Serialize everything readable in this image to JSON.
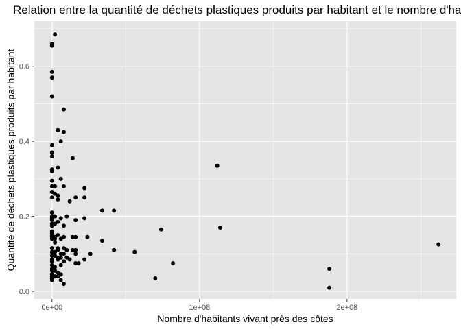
{
  "chart_data": {
    "type": "scatter",
    "title": "Relation entre la quantité de déchets plastiques produits par habitant et le nombre d'habitants vivant près des côtes",
    "xlabel": "Nombre d'habitants vivant près des côtes",
    "ylabel": "Quantité de déchets plastiques produits par habitant",
    "xlim": [
      -12000000,
      274000000
    ],
    "ylim": [
      -0.02,
      0.72
    ],
    "x_ticks": [
      0,
      100000000,
      200000000
    ],
    "x_tick_labels": [
      "0e+00",
      "1e+08",
      "2e+08"
    ],
    "y_ticks": [
      0.0,
      0.2,
      0.4,
      0.6
    ],
    "y_tick_labels": [
      "0.0",
      "0.2",
      "0.4",
      "0.6"
    ],
    "grid": true,
    "legend": "none",
    "colors": {
      "panel": "#e5e5e5",
      "grid": "#ffffff",
      "point": "#000000"
    },
    "series": [
      {
        "x": [
          0,
          0,
          2000000,
          0,
          0,
          8000000,
          0,
          4000000,
          8000000,
          6000000,
          0,
          14000000,
          0,
          0,
          4000000,
          0,
          112000000,
          0,
          6000000,
          0,
          2000000,
          22000000,
          0,
          8000000,
          0,
          2000000,
          4000000,
          16000000,
          22000000,
          0,
          4000000,
          12000000,
          34000000,
          42000000,
          0,
          0,
          2000000,
          10000000,
          6000000,
          0,
          16000000,
          0,
          22000000,
          4000000,
          0,
          2000000,
          8000000,
          0,
          74000000,
          114000000,
          0,
          0,
          4000000,
          0,
          2000000,
          8000000,
          14000000,
          16000000,
          24000000,
          2000000,
          6000000,
          0,
          0,
          34000000,
          2000000,
          8000000,
          4000000,
          0,
          10000000,
          4000000,
          14000000,
          16000000,
          42000000,
          0,
          2000000,
          6000000,
          8000000,
          16000000,
          26000000,
          56000000,
          262000000,
          0,
          2000000,
          4000000,
          6000000,
          10000000,
          0,
          4000000,
          12000000,
          22000000,
          0,
          8000000,
          18000000,
          16000000,
          6000000,
          0,
          2000000,
          82000000,
          0,
          0,
          2000000,
          4000000,
          188000000,
          0,
          6000000,
          0,
          2000000,
          4000000,
          0,
          70000000,
          0,
          6000000,
          8000000,
          188000000
        ],
        "y": [
          0.655,
          0.66,
          0.685,
          0.585,
          0.57,
          0.485,
          0.52,
          0.43,
          0.425,
          0.4,
          0.39,
          0.355,
          0.37,
          0.36,
          0.33,
          0.325,
          0.335,
          0.32,
          0.3,
          0.295,
          0.28,
          0.275,
          0.28,
          0.28,
          0.265,
          0.26,
          0.255,
          0.25,
          0.25,
          0.25,
          0.245,
          0.24,
          0.215,
          0.215,
          0.21,
          0.2,
          0.2,
          0.2,
          0.195,
          0.19,
          0.19,
          0.195,
          0.195,
          0.185,
          0.18,
          0.18,
          0.175,
          0.175,
          0.165,
          0.17,
          0.16,
          0.155,
          0.15,
          0.15,
          0.145,
          0.145,
          0.145,
          0.145,
          0.145,
          0.14,
          0.14,
          0.145,
          0.14,
          0.135,
          0.13,
          0.115,
          0.115,
          0.115,
          0.11,
          0.11,
          0.11,
          0.11,
          0.11,
          0.105,
          0.105,
          0.1,
          0.1,
          0.1,
          0.1,
          0.105,
          0.125,
          0.095,
          0.095,
          0.09,
          0.09,
          0.09,
          0.085,
          0.085,
          0.085,
          0.085,
          0.08,
          0.08,
          0.075,
          0.075,
          0.07,
          0.07,
          0.065,
          0.075,
          0.06,
          0.055,
          0.055,
          0.05,
          0.06,
          0.045,
          0.045,
          0.04,
          0.04,
          0.04,
          0.035,
          0.035,
          0.03,
          0.03,
          0.02,
          0.01
        ]
      }
    ]
  }
}
